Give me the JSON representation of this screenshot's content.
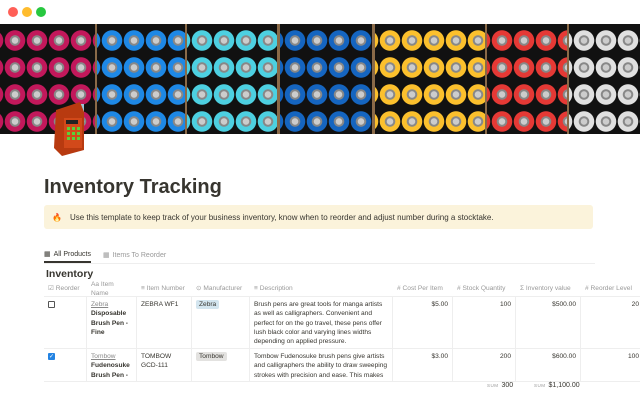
{
  "window": {
    "controls": [
      "#ff5f57",
      "#febc2e",
      "#28c840"
    ]
  },
  "page": {
    "title": "Inventory Tracking",
    "icon": "cash-register-icon"
  },
  "callout": {
    "icon": "fire-icon",
    "emoji": "🔥",
    "text": "Use this template to keep track of your business inventory, know when to reorder and adjust number during a stocktake."
  },
  "tabs": [
    {
      "label": "All Products",
      "active": true
    },
    {
      "label": "Items To Reorder",
      "active": false
    }
  ],
  "table": {
    "title": "Inventory",
    "columns": [
      {
        "icon": "☑",
        "label": "Reorder"
      },
      {
        "icon": "Aa",
        "label": "Item Name"
      },
      {
        "icon": "≡",
        "label": "Item Number"
      },
      {
        "icon": "⊙",
        "label": "Manufacturer"
      },
      {
        "icon": "≡",
        "label": "Description"
      },
      {
        "icon": "#",
        "label": "Cost Per Item"
      },
      {
        "icon": "#",
        "label": "Stock Quantity"
      },
      {
        "icon": "Σ",
        "label": "Inventory value"
      },
      {
        "icon": "#",
        "label": "Reorder Level"
      }
    ],
    "rows": [
      {
        "reorder": false,
        "brand": "Zebra",
        "name": "Disposable Brush Pen - Fine",
        "number": "ZEBRA WF1",
        "manufacturer": "Zebra",
        "description": "Brush pens are great tools for manga artists as well as calligraphers. Convenient and perfect for on the go travel, these pens offer lush black color and varying lines widths depending on applied pressure.",
        "cost": "$5.00",
        "stock": "100",
        "value": "$500.00",
        "level": "20"
      },
      {
        "reorder": true,
        "brand": "Tombow",
        "name": "Fudenosuke Brush Pen - Hard -",
        "number": "TOMBOW GCD-111",
        "manufacturer": "Tombow",
        "description": "Tombow Fudenosuke brush pens give artists and calligraphers the ability to draw sweeping strokes with precision and ease. This makes",
        "cost": "$3.00",
        "stock": "200",
        "value": "$600.00",
        "level": "100"
      }
    ],
    "sums": {
      "label": "SUM",
      "stock": "300",
      "value": "$1,100.00"
    }
  },
  "cover_colors": [
    "#c2185b",
    "#1e88e5",
    "#4dd0e1",
    "#1565c0",
    "#fbc02d",
    "#e53935",
    "#e0e0e0"
  ]
}
